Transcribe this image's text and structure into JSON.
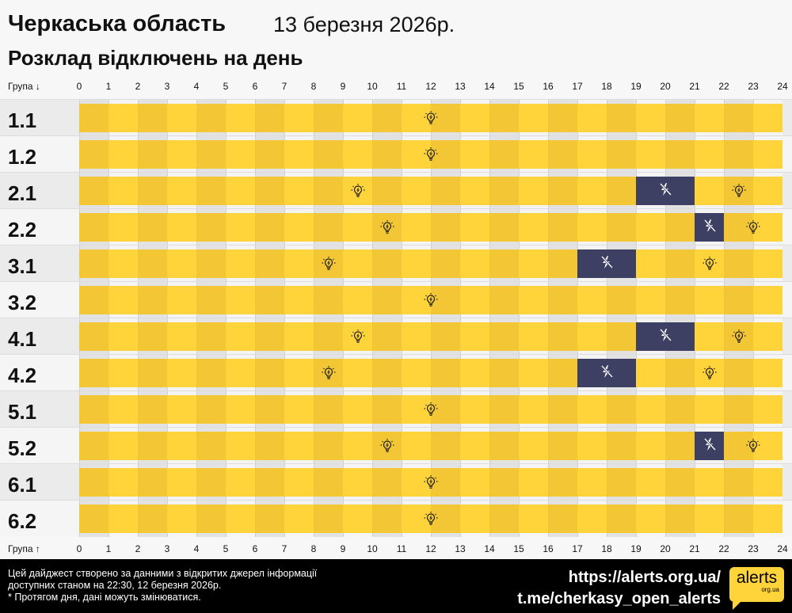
{
  "header": {
    "title": "Черкаська область",
    "date": "13 березня 2026р.",
    "subtitle": "Розклад відключень на день"
  },
  "axis": {
    "top_label": "Група ↓",
    "bottom_label": "Група ↑",
    "ticks": [
      "0",
      "1",
      "2",
      "3",
      "4",
      "5",
      "6",
      "7",
      "8",
      "9",
      "10",
      "11",
      "12",
      "13",
      "14",
      "15",
      "16",
      "17",
      "18",
      "19",
      "20",
      "21",
      "22",
      "23",
      "24"
    ]
  },
  "colors": {
    "power_on_dark": "#f2c635",
    "power_on_light": "#ffd43a",
    "power_off": "#3d3f63",
    "footer_bg": "#000000"
  },
  "icons": {
    "power_on": "lightbulb-icon",
    "power_off": "crossed-lightning-icon"
  },
  "groups": [
    {
      "name": "1.1",
      "outages": []
    },
    {
      "name": "1.2",
      "outages": []
    },
    {
      "name": "2.1",
      "outages": [
        [
          19,
          21
        ]
      ]
    },
    {
      "name": "2.2",
      "outages": [
        [
          21,
          22
        ]
      ]
    },
    {
      "name": "3.1",
      "outages": [
        [
          17,
          19
        ]
      ]
    },
    {
      "name": "3.2",
      "outages": []
    },
    {
      "name": "4.1",
      "outages": [
        [
          19,
          21
        ]
      ]
    },
    {
      "name": "4.2",
      "outages": [
        [
          17,
          19
        ]
      ]
    },
    {
      "name": "5.1",
      "outages": []
    },
    {
      "name": "5.2",
      "outages": [
        [
          21,
          22
        ]
      ]
    },
    {
      "name": "6.1",
      "outages": []
    },
    {
      "name": "6.2",
      "outages": []
    }
  ],
  "footer": {
    "note_1": "Цей дайджест створено за данними з відкритих джерел інформації",
    "note_2": "доступних станом на 22:30, 12 березня 2026р.",
    "note_3": "* Протягом дня, дані можуть змінюватися.",
    "link_site": "https://alerts.org.ua/",
    "link_tg": "t.me/cherkasy_open_alerts",
    "logo_word": "alerts",
    "logo_sub": "org.ua"
  }
}
